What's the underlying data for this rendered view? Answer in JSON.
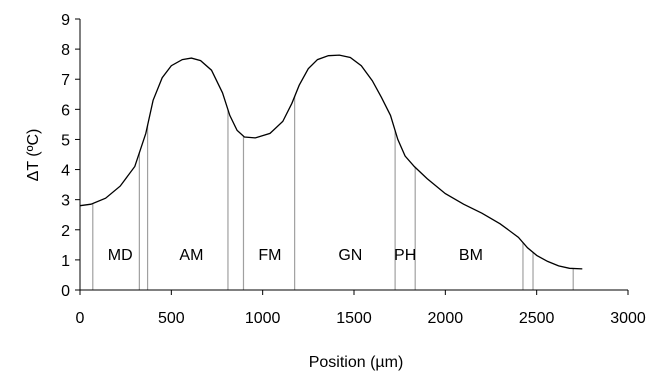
{
  "chart_data": {
    "type": "line",
    "xlabel": "Position (µm)",
    "ylabel": "ΔT (ºC)",
    "xlim": [
      0,
      3000
    ],
    "ylim": [
      0,
      9
    ],
    "x_ticks": [
      "0",
      "500",
      "1000",
      "1500",
      "2000",
      "2500",
      "3000"
    ],
    "y_ticks": [
      "0",
      "1",
      "2",
      "3",
      "4",
      "5",
      "6",
      "7",
      "8",
      "9"
    ],
    "grid": false,
    "legend": "none",
    "series": [
      {
        "color": "#000000",
        "x": [
          0,
          60,
          140,
          220,
          300,
          360,
          400,
          450,
          500,
          560,
          610,
          660,
          720,
          780,
          820,
          860,
          900,
          960,
          1040,
          1110,
          1160,
          1200,
          1250,
          1300,
          1360,
          1420,
          1480,
          1540,
          1600,
          1650,
          1700,
          1740,
          1780,
          1830,
          1900,
          2000,
          2100,
          2200,
          2300,
          2400,
          2450,
          2500,
          2560,
          2620,
          2680,
          2750
        ],
        "y": [
          2.8,
          2.85,
          3.05,
          3.45,
          4.1,
          5.2,
          6.3,
          7.05,
          7.45,
          7.65,
          7.7,
          7.62,
          7.3,
          6.55,
          5.8,
          5.3,
          5.08,
          5.05,
          5.2,
          5.6,
          6.2,
          6.8,
          7.35,
          7.65,
          7.78,
          7.8,
          7.72,
          7.45,
          6.95,
          6.4,
          5.8,
          5.0,
          4.45,
          4.1,
          3.7,
          3.2,
          2.85,
          2.55,
          2.2,
          1.75,
          1.4,
          1.15,
          0.95,
          0.8,
          0.72,
          0.7
        ]
      }
    ],
    "boundaries": [
      70,
      325,
      370,
      810,
      895,
      1175,
      1725,
      1835,
      2425,
      2480,
      2700
    ],
    "regions": [
      {
        "label": "MD",
        "x": 220
      },
      {
        "label": "AM",
        "x": 610
      },
      {
        "label": "FM",
        "x": 1040
      },
      {
        "label": "GN",
        "x": 1480
      },
      {
        "label": "PH",
        "x": 1780
      },
      {
        "label": "BM",
        "x": 2140
      }
    ],
    "region_label_y": 1.2,
    "boundary_color": "#a0a0a0",
    "axis_color": "#000000"
  }
}
